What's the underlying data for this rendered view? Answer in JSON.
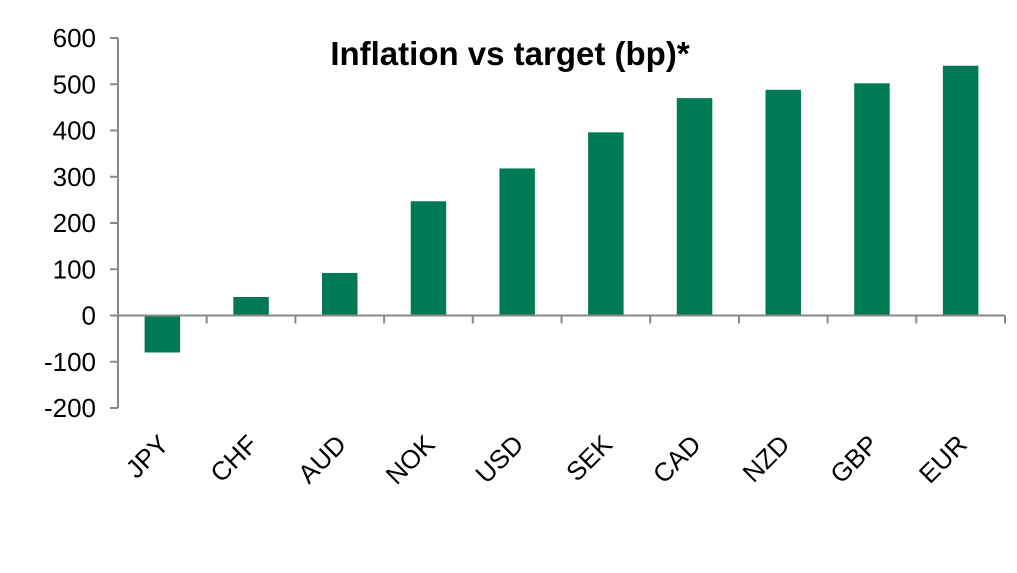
{
  "chart_data": {
    "type": "bar",
    "title": "Inflation vs target (bp)*",
    "xlabel": "",
    "ylabel": "",
    "categories": [
      "JPY",
      "CHF",
      "AUD",
      "NOK",
      "USD",
      "SEK",
      "CAD",
      "NZD",
      "GBP",
      "EUR"
    ],
    "values": [
      -80,
      40,
      92,
      247,
      318,
      396,
      470,
      488,
      502,
      540
    ],
    "ylim": [
      -200,
      600
    ],
    "yticks": [
      -200,
      -100,
      0,
      100,
      200,
      300,
      400,
      500,
      600
    ],
    "ytick_labels": [
      "-200",
      "-100",
      "0",
      "100",
      "200",
      "300",
      "400",
      "500",
      "600"
    ],
    "grid": false,
    "legend": "none",
    "bar_color": "#007A55"
  }
}
